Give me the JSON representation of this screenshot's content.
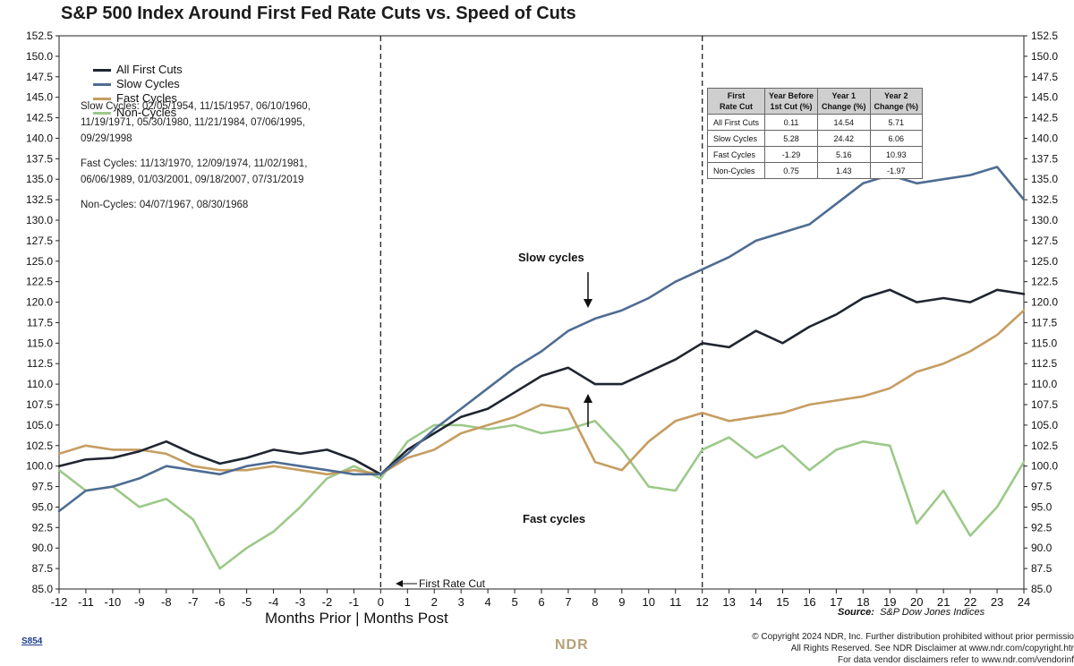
{
  "title": "S&P 500 Index Around First Fed Rate Cuts vs. Speed of Cuts",
  "colors": {
    "all": "#1f2530",
    "slow": "#4e6c93",
    "fast": "#c69d61",
    "non": "#9cc989",
    "axis": "#222222"
  },
  "legend": [
    {
      "label": "All First Cuts",
      "color": "#1f2530"
    },
    {
      "label": "Slow Cycles",
      "color": "#4e6c93"
    },
    {
      "label": "Fast Cycles",
      "color": "#c69d61"
    },
    {
      "label": "Non-Cycles",
      "color": "#9cc989"
    }
  ],
  "notes": {
    "slow": [
      "Slow Cycles: 02/05/1954, 11/15/1957, 06/10/1960,",
      "11/19/1971, 05/30/1980, 11/21/1984, 07/06/1995,",
      "09/29/1998"
    ],
    "fast": [
      "Fast Cycles: 11/13/1970, 12/09/1974, 11/02/1981,",
      "06/06/1989, 01/03/2001, 09/18/2007, 07/31/2019"
    ],
    "non": [
      "Non-Cycles: 04/07/1967, 08/30/1968"
    ]
  },
  "table": {
    "headers": [
      "First\nRate Cut",
      "Year Before\n1st Cut (%)",
      "Year 1\nChange (%)",
      "Year 2\nChange (%)"
    ],
    "rows": [
      [
        "All First Cuts",
        "0.11",
        "14.54",
        "5.71"
      ],
      [
        "Slow Cycles",
        "5.28",
        "24.42",
        "6.06"
      ],
      [
        "Fast Cycles",
        "-1.29",
        "5.16",
        "10.93"
      ],
      [
        "Non-Cycles",
        "0.75",
        "1.43",
        "-1.97"
      ]
    ]
  },
  "annotations": {
    "slow": "Slow cycles",
    "fast": "Fast cycles",
    "first_cut": "First Rate Cut"
  },
  "xlabel": "Months Prior | Months Post",
  "source": {
    "label": "Source:",
    "text": "S&P Dow Jones Indices"
  },
  "footer": {
    "id": "S854",
    "copyright": [
      "© Copyright 2024 NDR, Inc. Further distribution prohibited without prior permissio",
      "All Rights Reserved. See NDR Disclaimer at www.ndr.com/copyright.htr",
      "For data vendor disclaimers refer to www.ndr.com/vendorinf"
    ],
    "logo": "NDR"
  },
  "chart_data": {
    "type": "line",
    "title": "S&P 500 Index Around First Fed Rate Cuts vs. Speed of Cuts",
    "xlabel": "Months Prior | Months Post",
    "ylabel": "",
    "xlim": [
      -12,
      24
    ],
    "ylim": [
      85,
      152.5
    ],
    "xticks": [
      -12,
      -11,
      -10,
      -9,
      -8,
      -7,
      -6,
      -5,
      -4,
      -3,
      -2,
      -1,
      0,
      1,
      2,
      3,
      4,
      5,
      6,
      7,
      8,
      9,
      10,
      11,
      12,
      13,
      14,
      15,
      16,
      17,
      18,
      19,
      20,
      21,
      22,
      23,
      24
    ],
    "yticks": [
      85.0,
      87.5,
      90.0,
      92.5,
      95.0,
      97.5,
      100.0,
      102.5,
      105.0,
      107.5,
      110.0,
      112.5,
      115.0,
      117.5,
      120.0,
      122.5,
      125.0,
      127.5,
      130.0,
      132.5,
      135.0,
      137.5,
      140.0,
      142.5,
      145.0,
      147.5,
      150.0,
      152.5
    ],
    "vlines": [
      0,
      12
    ],
    "grid": false,
    "legend_position": "top-left",
    "series": [
      {
        "name": "All First Cuts",
        "color": "#1f2530",
        "points": [
          [
            -12,
            100.0
          ],
          [
            -11,
            100.8
          ],
          [
            -10,
            101.0
          ],
          [
            -9,
            101.8
          ],
          [
            -8,
            103.0
          ],
          [
            -7,
            101.5
          ],
          [
            -6,
            100.3
          ],
          [
            -5,
            101.0
          ],
          [
            -4,
            102.0
          ],
          [
            -3,
            101.5
          ],
          [
            -2,
            102.0
          ],
          [
            -1,
            100.8
          ],
          [
            0,
            99.0
          ],
          [
            1,
            102.0
          ],
          [
            2,
            104.0
          ],
          [
            3,
            106.0
          ],
          [
            4,
            107.0
          ],
          [
            5,
            109.0
          ],
          [
            6,
            111.0
          ],
          [
            7,
            112.0
          ],
          [
            8,
            110.0
          ],
          [
            9,
            110.0
          ],
          [
            10,
            111.5
          ],
          [
            11,
            113.0
          ],
          [
            12,
            115.0
          ],
          [
            13,
            114.5
          ],
          [
            14,
            116.5
          ],
          [
            15,
            115.0
          ],
          [
            16,
            117.0
          ],
          [
            17,
            118.5
          ],
          [
            18,
            120.5
          ],
          [
            19,
            121.5
          ],
          [
            20,
            120.0
          ],
          [
            21,
            120.5
          ],
          [
            22,
            120.0
          ],
          [
            23,
            121.5
          ],
          [
            24,
            121.0
          ]
        ]
      },
      {
        "name": "Slow Cycles",
        "color": "#4e6c93",
        "points": [
          [
            -12,
            94.5
          ],
          [
            -11,
            97.0
          ],
          [
            -10,
            97.5
          ],
          [
            -9,
            98.5
          ],
          [
            -8,
            100.0
          ],
          [
            -7,
            99.5
          ],
          [
            -6,
            99.0
          ],
          [
            -5,
            100.0
          ],
          [
            -4,
            100.5
          ],
          [
            -3,
            100.0
          ],
          [
            -2,
            99.5
          ],
          [
            -1,
            99.0
          ],
          [
            0,
            99.0
          ],
          [
            1,
            101.5
          ],
          [
            2,
            104.5
          ],
          [
            3,
            107.0
          ],
          [
            4,
            109.5
          ],
          [
            5,
            112.0
          ],
          [
            6,
            114.0
          ],
          [
            7,
            116.5
          ],
          [
            8,
            118.0
          ],
          [
            9,
            119.0
          ],
          [
            10,
            120.5
          ],
          [
            11,
            122.5
          ],
          [
            12,
            124.0
          ],
          [
            13,
            125.5
          ],
          [
            14,
            127.5
          ],
          [
            15,
            128.5
          ],
          [
            16,
            129.5
          ],
          [
            17,
            132.0
          ],
          [
            18,
            134.5
          ],
          [
            19,
            135.5
          ],
          [
            20,
            134.5
          ],
          [
            21,
            135.0
          ],
          [
            22,
            135.5
          ],
          [
            23,
            136.5
          ],
          [
            24,
            132.5
          ]
        ]
      },
      {
        "name": "Fast Cycles",
        "color": "#c69d61",
        "points": [
          [
            -12,
            101.5
          ],
          [
            -11,
            102.5
          ],
          [
            -10,
            102.0
          ],
          [
            -9,
            102.0
          ],
          [
            -8,
            101.5
          ],
          [
            -7,
            100.0
          ],
          [
            -6,
            99.5
          ],
          [
            -5,
            99.5
          ],
          [
            -4,
            100.0
          ],
          [
            -3,
            99.5
          ],
          [
            -2,
            99.0
          ],
          [
            -1,
            99.5
          ],
          [
            0,
            99.0
          ],
          [
            1,
            101.0
          ],
          [
            2,
            102.0
          ],
          [
            3,
            104.0
          ],
          [
            4,
            105.0
          ],
          [
            5,
            106.0
          ],
          [
            6,
            107.5
          ],
          [
            7,
            107.0
          ],
          [
            8,
            100.5
          ],
          [
            9,
            99.5
          ],
          [
            10,
            103.0
          ],
          [
            11,
            105.5
          ],
          [
            12,
            106.5
          ],
          [
            13,
            105.5
          ],
          [
            14,
            106.0
          ],
          [
            15,
            106.5
          ],
          [
            16,
            107.5
          ],
          [
            17,
            108.0
          ],
          [
            18,
            108.5
          ],
          [
            19,
            109.5
          ],
          [
            20,
            111.5
          ],
          [
            21,
            112.5
          ],
          [
            22,
            114.0
          ],
          [
            23,
            116.0
          ],
          [
            24,
            119.0
          ]
        ]
      },
      {
        "name": "Non-Cycles",
        "color": "#9cc989",
        "points": [
          [
            -12,
            99.5
          ],
          [
            -11,
            97.0
          ],
          [
            -10,
            97.5
          ],
          [
            -9,
            95.0
          ],
          [
            -8,
            96.0
          ],
          [
            -7,
            93.5
          ],
          [
            -6,
            87.5
          ],
          [
            -5,
            90.0
          ],
          [
            -4,
            92.0
          ],
          [
            -3,
            95.0
          ],
          [
            -2,
            98.5
          ],
          [
            -1,
            100.0
          ],
          [
            0,
            98.5
          ],
          [
            1,
            103.0
          ],
          [
            2,
            105.0
          ],
          [
            3,
            105.0
          ],
          [
            4,
            104.5
          ],
          [
            5,
            105.0
          ],
          [
            6,
            104.0
          ],
          [
            7,
            104.5
          ],
          [
            8,
            105.5
          ],
          [
            9,
            102.0
          ],
          [
            10,
            97.5
          ],
          [
            11,
            97.0
          ],
          [
            12,
            102.0
          ],
          [
            13,
            103.5
          ],
          [
            14,
            101.0
          ],
          [
            15,
            102.5
          ],
          [
            16,
            99.5
          ],
          [
            17,
            102.0
          ],
          [
            18,
            103.0
          ],
          [
            19,
            102.5
          ],
          [
            20,
            93.0
          ],
          [
            21,
            97.0
          ],
          [
            22,
            91.5
          ],
          [
            23,
            95.0
          ],
          [
            24,
            100.5
          ]
        ]
      }
    ]
  }
}
